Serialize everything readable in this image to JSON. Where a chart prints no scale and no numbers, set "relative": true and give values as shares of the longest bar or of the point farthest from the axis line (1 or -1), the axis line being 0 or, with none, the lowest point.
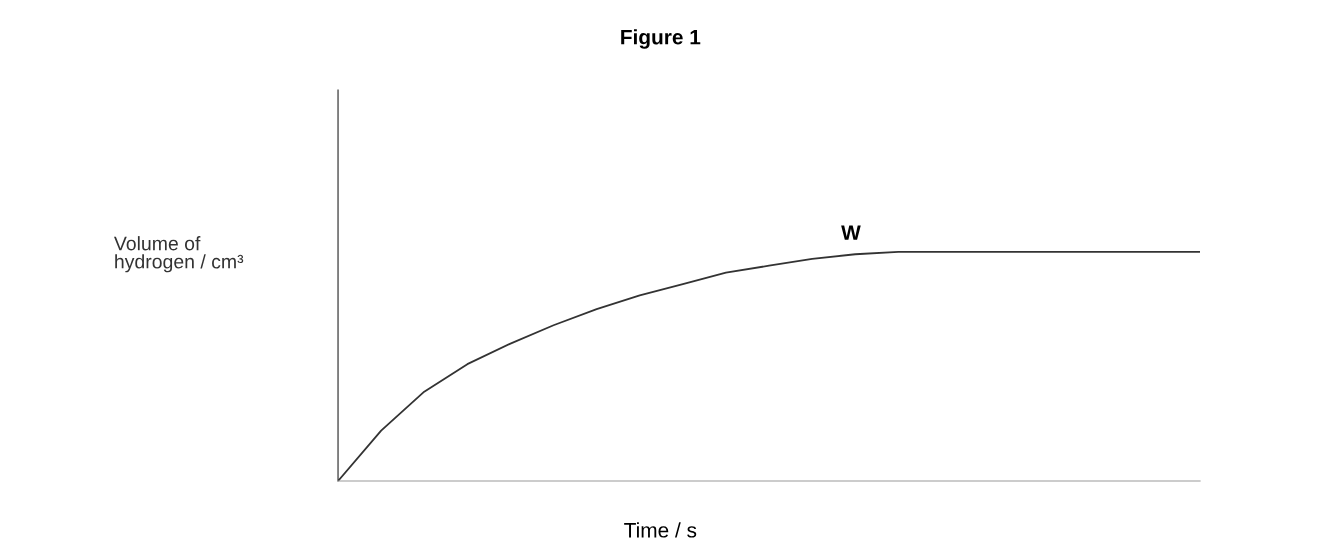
{
  "chart_data": {
    "type": "line",
    "title": "Figure 1",
    "xlabel": "Time / s",
    "ylabel": "Volume of\nhydrogen / cm³",
    "relative": true,
    "categories": [
      null,
      null,
      null,
      null,
      null,
      null,
      null,
      null,
      null,
      null,
      null,
      null,
      null,
      null,
      null,
      null,
      null,
      null,
      null,
      null,
      null
    ],
    "series": [
      {
        "color": "#333333",
        "values": [
          0,
          0.22,
          0.39,
          0.51,
          0.6,
          0.68,
          0.75,
          0.81,
          0.86,
          0.91,
          0.94,
          0.97,
          0.99,
          1,
          1,
          1,
          1,
          1,
          1,
          1,
          1
        ]
      }
    ],
    "annotations": [
      "W"
    ],
    "marker": "none",
    "line_style": "solid"
  }
}
